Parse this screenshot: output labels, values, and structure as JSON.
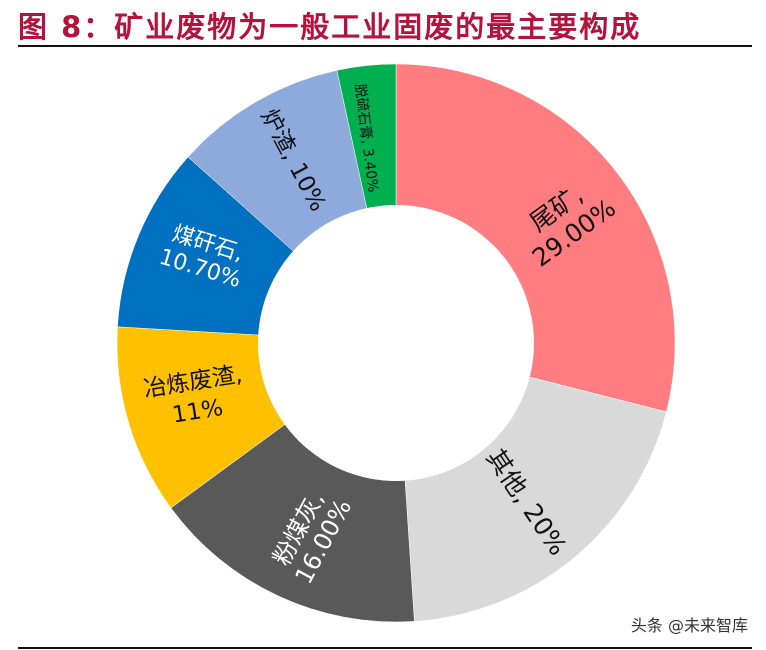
{
  "header": {
    "title": "图 8：矿业废物为一般工业固废的最主要构成"
  },
  "footer": {
    "watermark": "头条 @未来智库"
  },
  "colors": {
    "title": "#B5133E",
    "rule": "#111111"
  },
  "chart_data": {
    "type": "pie",
    "variant": "donut",
    "title": "图 8：矿业废物为一般工业固废的最主要构成",
    "start_angle_deg": 0,
    "direction": "clockwise",
    "legend": "none (labels on slices)",
    "categories": [
      "尾矿",
      "其他",
      "粉煤灰",
      "冶炼废渣",
      "煤矸石",
      "炉渣",
      "脱硫石膏"
    ],
    "values": [
      29.0,
      20.0,
      16.0,
      11.0,
      10.7,
      10.0,
      3.4
    ],
    "unit": "%",
    "slices": [
      {
        "name": "尾矿",
        "value": 29.0,
        "label_line1": "尾矿,",
        "label_line2": "29.00%",
        "color": "#FF7C80",
        "text_color": "#111111"
      },
      {
        "name": "其他",
        "value": 20.0,
        "label_line1": "其他, 20%",
        "label_line2": "",
        "color": "#D9D9D9",
        "text_color": "#111111"
      },
      {
        "name": "粉煤灰",
        "value": 16.0,
        "label_line1": "粉煤灰,",
        "label_line2": "16.00%",
        "color": "#595959",
        "text_color": "#FFFFFF"
      },
      {
        "name": "冶炼废渣",
        "value": 11.0,
        "label_line1": "冶炼废渣,",
        "label_line2": "11%",
        "color": "#FFC000",
        "text_color": "#111111"
      },
      {
        "name": "煤矸石",
        "value": 10.7,
        "label_line1": "煤矸石,",
        "label_line2": "10.70%",
        "color": "#0070C0",
        "text_color": "#FFFFFF"
      },
      {
        "name": "炉渣",
        "value": 10.0,
        "label_line1": "炉渣, 10%",
        "label_line2": "",
        "color": "#8EA9DB",
        "text_color": "#111111"
      },
      {
        "name": "脱硫石膏",
        "value": 3.4,
        "label_line1": "脱硫石膏, 3.40%",
        "label_line2": "",
        "color": "#00B050",
        "text_color": "#111111"
      }
    ]
  }
}
